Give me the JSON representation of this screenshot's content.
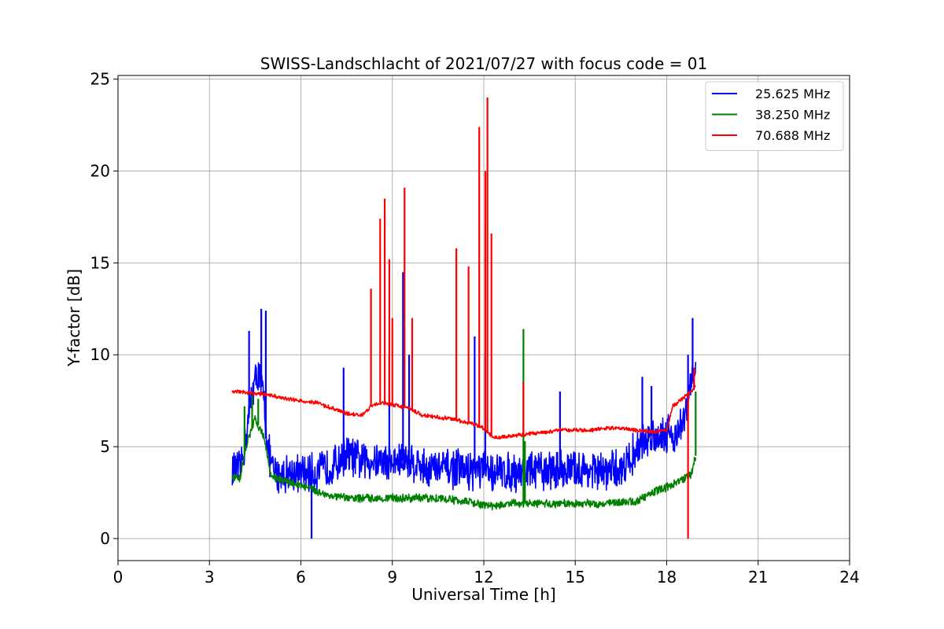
{
  "chart_data": {
    "type": "line",
    "title": "SWISS-Landschlacht of 2021/07/27 with focus code = 01",
    "xlabel": "Universal Time [h]",
    "ylabel": "Y-factor [dB]",
    "xlim": [
      0,
      24
    ],
    "ylim": [
      -1.2,
      25.2
    ],
    "xticks": [
      0,
      3,
      6,
      9,
      12,
      15,
      18,
      21,
      24
    ],
    "yticks": [
      0,
      5,
      10,
      15,
      20,
      25
    ],
    "grid": true,
    "legend_position": "top-right",
    "series": [
      {
        "name": "25.625 MHz",
        "color": "#0000ff",
        "noise": 1.2,
        "points": [
          [
            3.75,
            3.8
          ],
          [
            4.0,
            3.6
          ],
          [
            4.2,
            5.5
          ],
          [
            4.4,
            8.0
          ],
          [
            4.6,
            9.0
          ],
          [
            4.8,
            7.5
          ],
          [
            4.9,
            5.0
          ],
          [
            5.1,
            3.5
          ],
          [
            5.5,
            3.6
          ],
          [
            6.0,
            3.5
          ],
          [
            6.5,
            3.6
          ],
          [
            7.0,
            3.9
          ],
          [
            7.5,
            4.6
          ],
          [
            8.0,
            4.2
          ],
          [
            8.5,
            4.3
          ],
          [
            9.0,
            4.1
          ],
          [
            9.5,
            4.3
          ],
          [
            10.0,
            3.9
          ],
          [
            10.5,
            3.8
          ],
          [
            11.0,
            3.8
          ],
          [
            11.5,
            3.7
          ],
          [
            12.0,
            3.7
          ],
          [
            12.5,
            3.6
          ],
          [
            13.0,
            3.6
          ],
          [
            13.5,
            3.7
          ],
          [
            14.0,
            3.7
          ],
          [
            14.5,
            3.8
          ],
          [
            15.0,
            3.7
          ],
          [
            15.5,
            3.7
          ],
          [
            16.0,
            3.6
          ],
          [
            16.5,
            3.8
          ],
          [
            17.0,
            4.8
          ],
          [
            17.5,
            5.6
          ],
          [
            18.0,
            5.8
          ],
          [
            18.3,
            5.6
          ],
          [
            18.6,
            6.5
          ],
          [
            18.8,
            8.5
          ],
          [
            18.95,
            9.2
          ]
        ],
        "spikes": [
          [
            4.3,
            11.3
          ],
          [
            4.7,
            12.5
          ],
          [
            4.85,
            12.4
          ],
          [
            6.35,
            0.0
          ],
          [
            7.4,
            9.3
          ],
          [
            8.9,
            10.0
          ],
          [
            9.35,
            14.5
          ],
          [
            9.55,
            10.0
          ],
          [
            11.7,
            11.0
          ],
          [
            12.05,
            10.1
          ],
          [
            14.5,
            8.0
          ],
          [
            17.2,
            8.8
          ],
          [
            17.5,
            8.3
          ],
          [
            18.7,
            10.0
          ],
          [
            18.85,
            12.0
          ]
        ]
      },
      {
        "name": "38.250 MHz",
        "color": "#008000",
        "noise": 0.25,
        "points": [
          [
            3.75,
            3.3
          ],
          [
            4.0,
            3.3
          ],
          [
            4.2,
            5.0
          ],
          [
            4.5,
            6.5
          ],
          [
            4.8,
            5.5
          ],
          [
            5.0,
            3.5
          ],
          [
            5.3,
            3.2
          ],
          [
            6.0,
            2.9
          ],
          [
            6.5,
            2.6
          ],
          [
            7.0,
            2.3
          ],
          [
            7.5,
            2.2
          ],
          [
            8.0,
            2.2
          ],
          [
            8.5,
            2.2
          ],
          [
            9.0,
            2.2
          ],
          [
            9.5,
            2.2
          ],
          [
            10.0,
            2.2
          ],
          [
            10.5,
            2.2
          ],
          [
            11.0,
            2.1
          ],
          [
            11.5,
            2.0
          ],
          [
            12.0,
            1.8
          ],
          [
            12.5,
            1.8
          ],
          [
            13.0,
            1.9
          ],
          [
            13.5,
            1.9
          ],
          [
            14.0,
            1.9
          ],
          [
            14.5,
            1.9
          ],
          [
            15.0,
            1.9
          ],
          [
            15.5,
            1.9
          ],
          [
            16.0,
            1.9
          ],
          [
            16.5,
            2.0
          ],
          [
            17.0,
            2.0
          ],
          [
            17.5,
            2.5
          ],
          [
            18.0,
            2.8
          ],
          [
            18.5,
            3.2
          ],
          [
            18.8,
            3.5
          ],
          [
            18.95,
            4.5
          ]
        ],
        "spikes": [
          [
            4.15,
            7.2
          ],
          [
            4.4,
            7.8
          ],
          [
            4.6,
            7.6
          ],
          [
            13.3,
            11.4
          ],
          [
            13.35,
            5.3
          ],
          [
            18.95,
            8.0
          ]
        ]
      },
      {
        "name": "70.688 MHz",
        "color": "#ff0000",
        "noise": 0.12,
        "points": [
          [
            3.75,
            8.0
          ],
          [
            4.0,
            8.0
          ],
          [
            4.5,
            7.9
          ],
          [
            5.0,
            7.8
          ],
          [
            5.5,
            7.6
          ],
          [
            6.0,
            7.5
          ],
          [
            6.5,
            7.4
          ],
          [
            7.0,
            7.1
          ],
          [
            7.5,
            6.8
          ],
          [
            8.0,
            6.7
          ],
          [
            8.3,
            7.2
          ],
          [
            8.6,
            7.4
          ],
          [
            9.0,
            7.3
          ],
          [
            9.5,
            7.1
          ],
          [
            10.0,
            6.7
          ],
          [
            10.5,
            6.6
          ],
          [
            11.0,
            6.5
          ],
          [
            11.5,
            6.3
          ],
          [
            12.0,
            6.0
          ],
          [
            12.3,
            5.5
          ],
          [
            12.5,
            5.5
          ],
          [
            13.0,
            5.6
          ],
          [
            13.5,
            5.7
          ],
          [
            14.0,
            5.8
          ],
          [
            14.5,
            5.9
          ],
          [
            15.0,
            5.9
          ],
          [
            15.5,
            5.9
          ],
          [
            16.0,
            6.0
          ],
          [
            16.5,
            6.0
          ],
          [
            17.0,
            5.9
          ],
          [
            17.5,
            5.8
          ],
          [
            18.0,
            5.9
          ],
          [
            18.2,
            7.2
          ],
          [
            18.5,
            7.6
          ],
          [
            18.8,
            8.0
          ],
          [
            18.95,
            8.3
          ]
        ],
        "spikes": [
          [
            8.3,
            13.6
          ],
          [
            8.6,
            17.4
          ],
          [
            8.75,
            18.5
          ],
          [
            8.9,
            15.2
          ],
          [
            9.0,
            12.0
          ],
          [
            9.4,
            19.1
          ],
          [
            9.65,
            12.0
          ],
          [
            11.1,
            15.8
          ],
          [
            11.5,
            14.8
          ],
          [
            11.85,
            22.4
          ],
          [
            12.05,
            20.0
          ],
          [
            12.12,
            24.0
          ],
          [
            12.25,
            16.6
          ],
          [
            13.3,
            8.5
          ],
          [
            18.7,
            0.0
          ],
          [
            18.9,
            9.3
          ]
        ]
      }
    ]
  }
}
